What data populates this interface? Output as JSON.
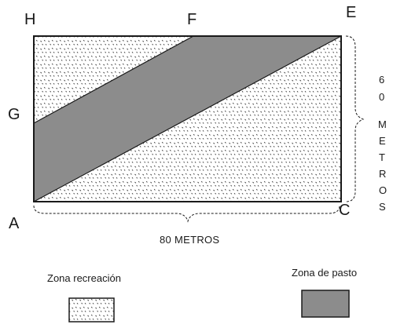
{
  "points": {
    "H": "H",
    "F": "F",
    "E": "E",
    "G": "G",
    "A": "A",
    "C": "C"
  },
  "dimensions": {
    "width_label": "80 METROS",
    "height_label_chars": [
      "6",
      "0",
      "",
      "M",
      "E",
      "T",
      "R",
      "O",
      "S"
    ]
  },
  "legend": {
    "recreation_label": "Zona recreación",
    "pasture_label": "Zona de pasto"
  },
  "colors": {
    "pasture_fill": "#8c8c8c",
    "outline": "#1a1a1a",
    "dots": "#333333"
  }
}
